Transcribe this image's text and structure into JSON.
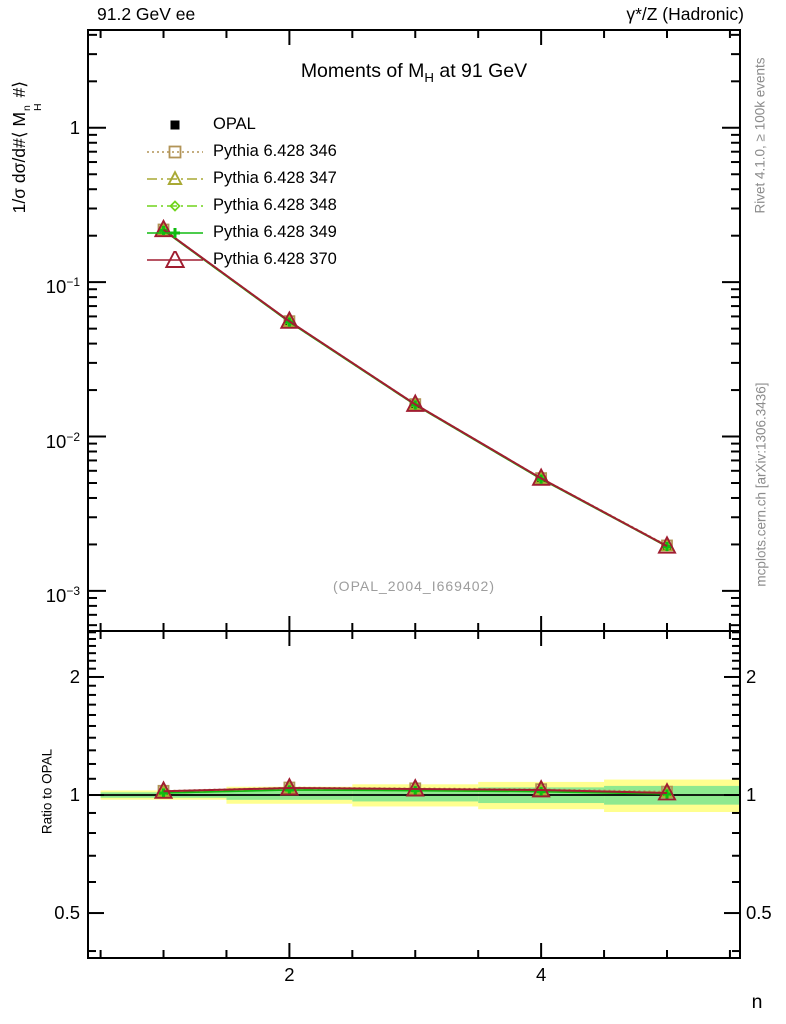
{
  "header": {
    "left": "91.2 GeV ee",
    "right": "γ*/Z (Hadronic)"
  },
  "title": {
    "pre": "Moments of M",
    "sub": "H",
    "post": " at 91 GeV"
  },
  "watermark": "(OPAL_2004_I669402)",
  "side_notes": {
    "rivet": "Rivet 4.1.0, ≥ 100k events",
    "mcplots": "mcplots.cern.ch [arXiv:1306.3436]"
  },
  "axes": {
    "x": {
      "label": "n"
    },
    "y_main": {
      "label_parts": {
        "pre": "1/σ  dσ/d#⟨ M",
        "sup": "n",
        "sub": "H",
        "post": " #⟩"
      }
    },
    "y_ratio": {
      "label": "Ratio to OPAL"
    }
  },
  "chart_data": {
    "type": "line",
    "title": "Moments of M_H at 91 GeV",
    "xlabel": "n",
    "ylabel": "1/σ dσ/d#⟨ M_H^n #⟩",
    "ratio_ylabel": "Ratio to OPAL",
    "x": [
      1,
      2,
      3,
      4,
      5
    ],
    "xlim": [
      0.4,
      5.58
    ],
    "x_major_ticks": [
      2,
      4
    ],
    "x_minor_step": 0.5,
    "ylim_main": [
      0.00055,
      4.3
    ],
    "y_main_tick_exponents": [
      0,
      -1,
      -2,
      -3
    ],
    "ylim_ratio": [
      0.384,
      2.62
    ],
    "y_ratio_ticks": [
      2,
      1,
      0.5
    ],
    "legend_position": "top-left-inside",
    "grid": false,
    "series": [
      {
        "name": "OPAL",
        "kind": "data",
        "color": "#000000",
        "marker": "filled-square",
        "line": "none",
        "values": [
          0.214,
          0.0535,
          0.0156,
          0.0052,
          0.00193
        ],
        "ratio": [
          1,
          1,
          1,
          1,
          1
        ]
      },
      {
        "name": "Pythia 6.428 346",
        "kind": "mc",
        "color": "#b29457",
        "marker": "open-square",
        "line": "dotted",
        "values": [
          0.2194,
          0.0559,
          0.01622,
          0.00538,
          0.00197
        ],
        "ratio": [
          1.025,
          1.045,
          1.04,
          1.035,
          1.02
        ]
      },
      {
        "name": "Pythia 6.428 347",
        "kind": "mc",
        "color": "#a9a934",
        "marker": "open-triangle",
        "line": "dashdot",
        "values": [
          0.2183,
          0.05564,
          0.01615,
          0.00536,
          0.00196
        ],
        "ratio": [
          1.02,
          1.04,
          1.035,
          1.03,
          1.015
        ]
      },
      {
        "name": "Pythia 6.428 348",
        "kind": "mc",
        "color": "#70d41c",
        "marker": "open-diamond",
        "line": "dashdot",
        "values": [
          0.2166,
          0.05521,
          0.01602,
          0.00531,
          0.00194
        ],
        "ratio": [
          1.012,
          1.032,
          1.027,
          1.022,
          1.007
        ]
      },
      {
        "name": "Pythia 6.428 349",
        "kind": "mc",
        "color": "#11bb11",
        "marker": "open-plus",
        "line": "solid",
        "values": [
          0.2166,
          0.05511,
          0.01601,
          0.0053,
          0.00194
        ],
        "ratio": [
          1.012,
          1.03,
          1.026,
          1.02,
          1.006
        ]
      },
      {
        "name": "Pythia 6.428 370",
        "kind": "mc",
        "color": "#a01d30",
        "marker": "open-triangle",
        "line": "solid",
        "values": [
          0.2187,
          0.05575,
          0.01616,
          0.00536,
          0.00195
        ],
        "ratio": [
          1.022,
          1.042,
          1.036,
          1.03,
          1.012
        ]
      }
    ],
    "ratio_band": {
      "bin_edges": [
        0.5,
        1.5,
        2.5,
        3.5,
        4.5,
        5.58
      ],
      "yellow_halfwidth": [
        0.027,
        0.05,
        0.065,
        0.08,
        0.095
      ],
      "green_halfwidth": [
        0.016,
        0.028,
        0.037,
        0.046,
        0.055
      ],
      "yellow_color": "#ffff8f",
      "green_color": "#8fe98f"
    },
    "ratio_ref_line": 1
  }
}
